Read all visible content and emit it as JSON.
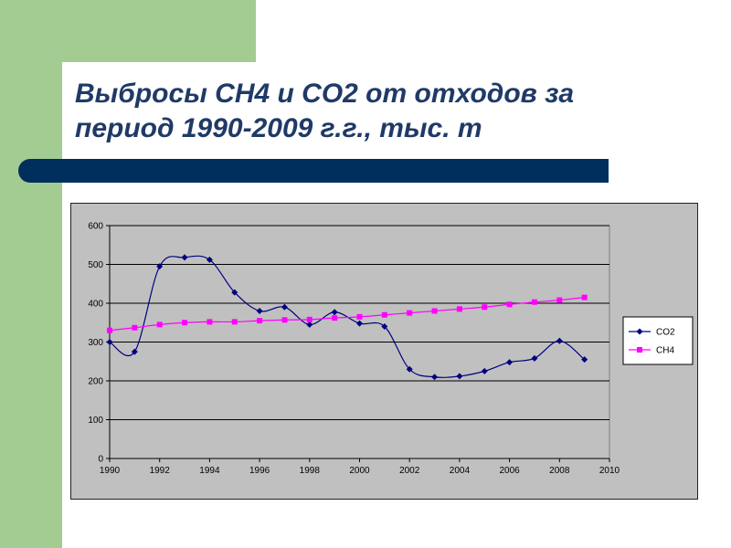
{
  "slide": {
    "title_line1": "Выбросы СН4 и СО2 от отходов за",
    "title_line2": "период 1990-2009 г.г., тыс. т",
    "accent_green": "#a3cc92",
    "bar_color": "#002f5e",
    "title_color": "#1f3a66"
  },
  "chart_data": {
    "type": "line",
    "title": "",
    "xlabel": "",
    "ylabel": "",
    "xlim": [
      1990,
      2010
    ],
    "ylim": [
      0,
      600
    ],
    "x_ticks": [
      1990,
      1992,
      1994,
      1996,
      1998,
      2000,
      2002,
      2004,
      2006,
      2008,
      2010
    ],
    "y_ticks": [
      0,
      100,
      200,
      300,
      400,
      500,
      600
    ],
    "grid": true,
    "legend": "right",
    "plot_background": "#c0c0c0",
    "series": [
      {
        "name": "CO2",
        "color": "#000080",
        "marker": "diamond",
        "smooth": true,
        "x": [
          1990,
          1991,
          1992,
          1993,
          1994,
          1995,
          1996,
          1997,
          1998,
          1999,
          2000,
          2001,
          2002,
          2003,
          2004,
          2005,
          2006,
          2007,
          2008,
          2009
        ],
        "values": [
          300,
          275,
          495,
          518,
          512,
          428,
          380,
          390,
          345,
          377,
          348,
          340,
          230,
          210,
          212,
          225,
          248,
          258,
          303,
          255
        ]
      },
      {
        "name": "CH4",
        "color": "#ff00ff",
        "marker": "square",
        "smooth": true,
        "x": [
          1990,
          1991,
          1992,
          1993,
          1994,
          1995,
          1996,
          1997,
          1998,
          1999,
          2000,
          2001,
          2002,
          2003,
          2004,
          2005,
          2006,
          2007,
          2008,
          2009
        ],
        "values": [
          330,
          337,
          345,
          350,
          352,
          352,
          355,
          357,
          358,
          362,
          365,
          370,
          375,
          380,
          385,
          390,
          397,
          403,
          408,
          415
        ]
      }
    ]
  }
}
